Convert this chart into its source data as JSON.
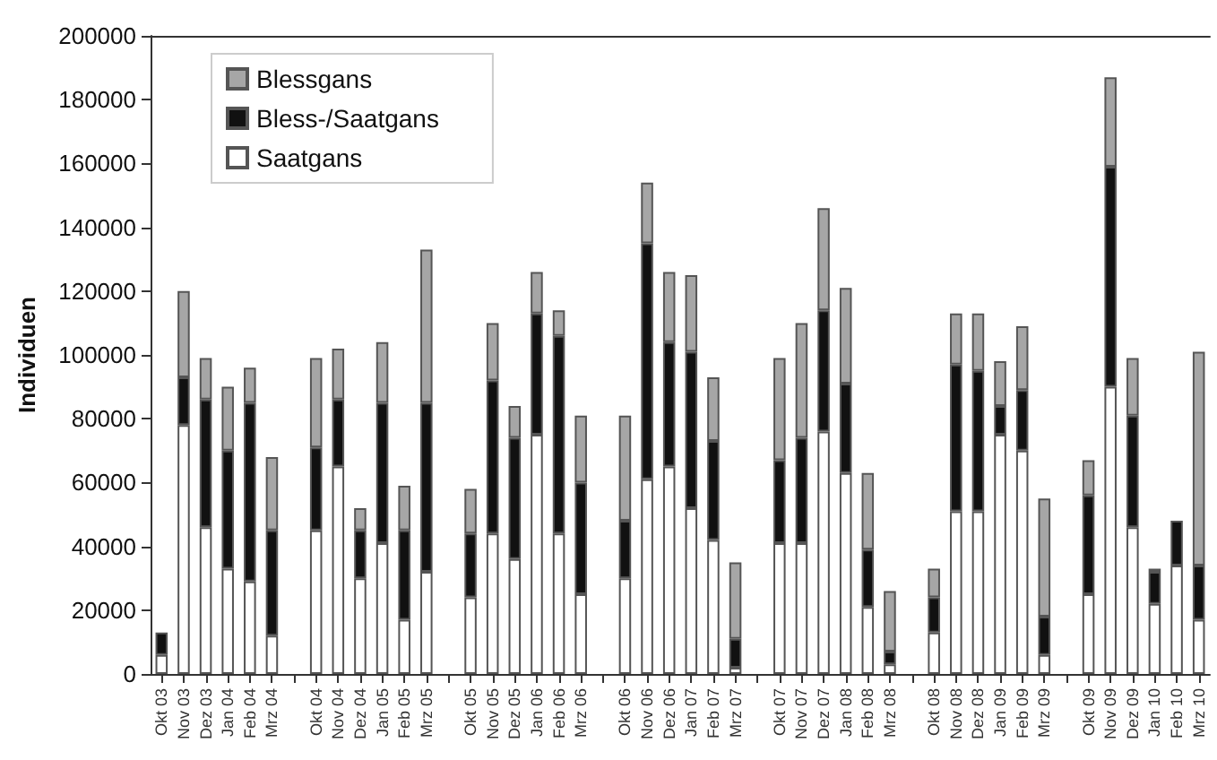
{
  "chart_data": {
    "type": "bar",
    "stacked": true,
    "ylabel": "Individuen",
    "categories": [
      "Okt 03",
      "Nov 03",
      "Dez 03",
      "Jan 04",
      "Feb 04",
      "Mrz 04",
      null,
      "Okt 04",
      "Nov 04",
      "Dez 04",
      "Jan 05",
      "Feb 05",
      "Mrz 05",
      null,
      "Okt 05",
      "Nov 05",
      "Dez 05",
      "Jan 06",
      "Feb 06",
      "Mrz 06",
      null,
      "Okt 06",
      "Nov 06",
      "Dez 06",
      "Jan 07",
      "Feb 07",
      "Mrz 07",
      null,
      "Okt 07",
      "Nov 07",
      "Dez 07",
      "Jan 08",
      "Feb 08",
      "Mrz 08",
      null,
      "Okt 08",
      "Nov 08",
      "Dez 08",
      "Jan 09",
      "Feb 09",
      "Mrz 09",
      null,
      "Okt 09",
      "Nov 09",
      "Dez 09",
      "Jan 10",
      "Feb 10",
      "Mrz 10"
    ],
    "series": [
      {
        "name": "Saatgans",
        "color": "#ffffff",
        "values": [
          6000,
          78000,
          46000,
          33000,
          29000,
          12000,
          null,
          45000,
          65000,
          30000,
          41000,
          17000,
          32000,
          null,
          24000,
          44000,
          36000,
          75000,
          44000,
          25000,
          null,
          30000,
          61000,
          65000,
          52000,
          42000,
          2000,
          null,
          41000,
          41000,
          76000,
          63000,
          21000,
          3000,
          null,
          13000,
          51000,
          51000,
          75000,
          70000,
          6000,
          null,
          25000,
          90000,
          46000,
          22000,
          34000,
          17000
        ]
      },
      {
        "name": "Bless-/Saatgans",
        "color": "#111111",
        "values": [
          7000,
          15000,
          40000,
          37000,
          56000,
          33000,
          null,
          26000,
          21000,
          15000,
          44000,
          28000,
          53000,
          null,
          20000,
          48000,
          38000,
          38000,
          62000,
          35000,
          null,
          18000,
          74000,
          39000,
          49000,
          31000,
          9000,
          null,
          26000,
          33000,
          38000,
          28000,
          18000,
          4000,
          null,
          11000,
          46000,
          44000,
          9000,
          19000,
          12000,
          null,
          31000,
          69000,
          35000,
          10000,
          14000,
          17000
        ]
      },
      {
        "name": "Blessgans",
        "color": "#a6a6a6",
        "values": [
          null,
          27000,
          13000,
          20000,
          11000,
          23000,
          null,
          28000,
          16000,
          7000,
          19000,
          14000,
          48000,
          null,
          14000,
          18000,
          10000,
          13000,
          8000,
          21000,
          null,
          33000,
          19000,
          22000,
          24000,
          20000,
          24000,
          null,
          32000,
          36000,
          32000,
          30000,
          24000,
          19000,
          null,
          9000,
          16000,
          18000,
          14000,
          20000,
          37000,
          null,
          11000,
          28000,
          18000,
          1000,
          null,
          67000
        ]
      }
    ],
    "ylim": [
      0,
      200000
    ],
    "yticks": [
      0,
      20000,
      40000,
      60000,
      80000,
      100000,
      120000,
      140000,
      160000,
      180000,
      200000
    ],
    "grid": false,
    "legend": "top left"
  }
}
